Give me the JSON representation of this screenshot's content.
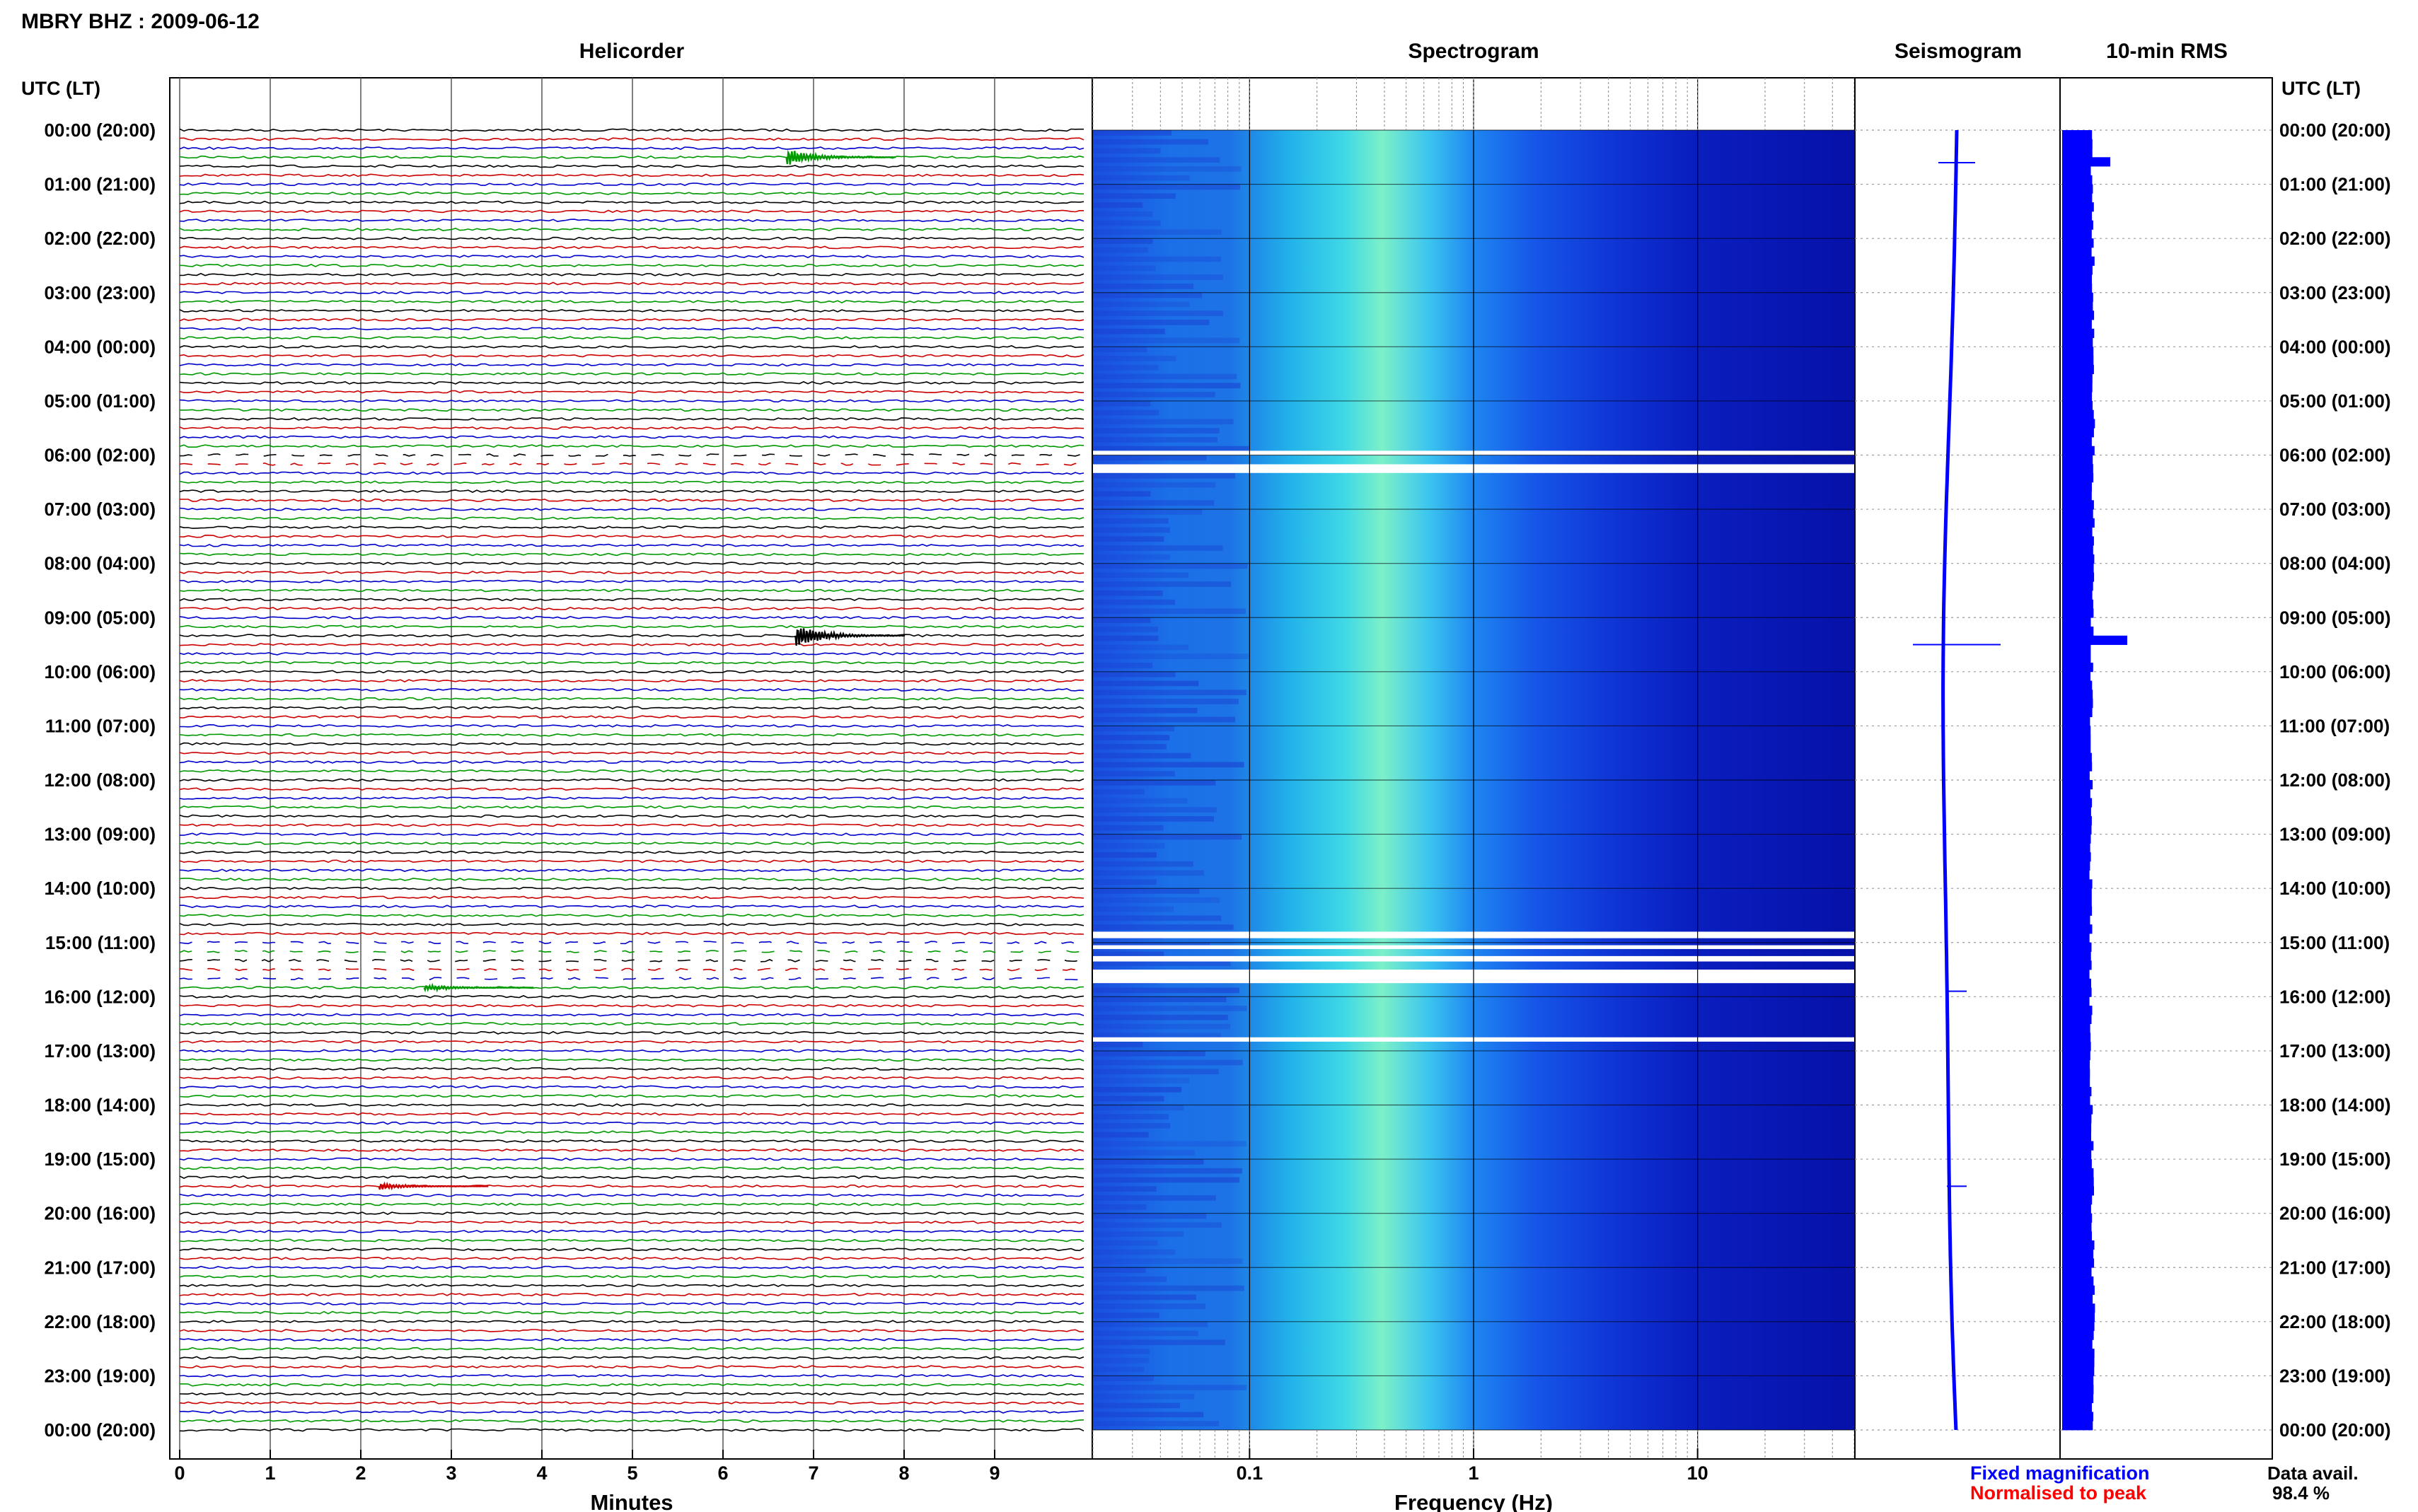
{
  "header": {
    "title": "MBRY BHZ : 2009-06-12"
  },
  "panels": {
    "helicorder": "Helicorder",
    "spectrogram": "Spectrogram",
    "seismogram": "Seismogram",
    "rms": "10-min RMS"
  },
  "axes": {
    "left_time_label": "UTC (LT)",
    "right_time_label": "UTC (LT)",
    "helicorder_xlabel": "Minutes",
    "spectrogram_xlabel": "Frequency (Hz)"
  },
  "legend": {
    "fixed": "Fixed magnification",
    "normalised": "Normalised to peak",
    "fixed_color": "#0000ff",
    "normalised_color": "#ff0000"
  },
  "availability": {
    "label": "Data avail.",
    "value": "98.4 %"
  },
  "colors": {
    "trace_cycle": [
      "#000000",
      "#cc0000",
      "#0000cc",
      "#009900"
    ],
    "seismogram": "#0000ff",
    "rms_bar": "#0000ff"
  },
  "chart_data": {
    "type": "heatmap",
    "time_ticks": [
      "00:00 (20:00)",
      "01:00 (21:00)",
      "02:00 (22:00)",
      "03:00 (23:00)",
      "04:00 (00:00)",
      "05:00 (01:00)",
      "06:00 (02:00)",
      "07:00 (03:00)",
      "08:00 (04:00)",
      "09:00 (05:00)",
      "10:00 (06:00)",
      "11:00 (07:00)",
      "12:00 (08:00)",
      "13:00 (09:00)",
      "14:00 (10:00)",
      "15:00 (11:00)",
      "16:00 (12:00)",
      "17:00 (13:00)",
      "18:00 (14:00)",
      "19:00 (15:00)",
      "20:00 (16:00)",
      "21:00 (17:00)",
      "22:00 (18:00)",
      "23:00 (19:00)",
      "00:00 (20:00)"
    ],
    "helicorder": {
      "xlim": [
        0,
        10
      ],
      "x_ticks": [
        "0",
        "1",
        "2",
        "3",
        "4",
        "5",
        "6",
        "7",
        "8",
        "9"
      ],
      "minutes_per_line": 10,
      "lines": 144,
      "events": [
        {
          "hour": 0.5,
          "minute": 6.7,
          "amplitude": 1.0
        },
        {
          "hour": 9.33,
          "minute": 6.8,
          "amplitude": 1.4
        },
        {
          "hour": 15.83,
          "minute": 2.7,
          "amplitude": 0.4
        },
        {
          "hour": 19.5,
          "minute": 2.2,
          "amplitude": 0.4
        }
      ],
      "gaps_hours": [
        [
          6.0,
          6.3
        ],
        [
          14.9,
          15.8
        ]
      ]
    },
    "spectrogram": {
      "xscale": "log",
      "xlim": [
        0.02,
        50
      ],
      "x_ticks": [
        "0.1",
        "1",
        "10"
      ],
      "gaps_hours": [
        [
          5.92,
          6.0
        ],
        [
          6.17,
          6.33
        ],
        [
          14.8,
          14.92
        ],
        [
          15.05,
          15.12
        ],
        [
          15.25,
          15.35
        ],
        [
          15.5,
          15.75
        ],
        [
          16.75,
          16.83
        ]
      ]
    },
    "seismogram": {
      "spikes_hours": [
        0.6,
        9.5,
        15.9,
        19.5
      ]
    },
    "rms": {
      "bins": 144,
      "peaks": [
        {
          "hour": 0.5,
          "value": 1.7
        },
        {
          "hour": 9.33,
          "value": 2.3
        }
      ]
    }
  }
}
